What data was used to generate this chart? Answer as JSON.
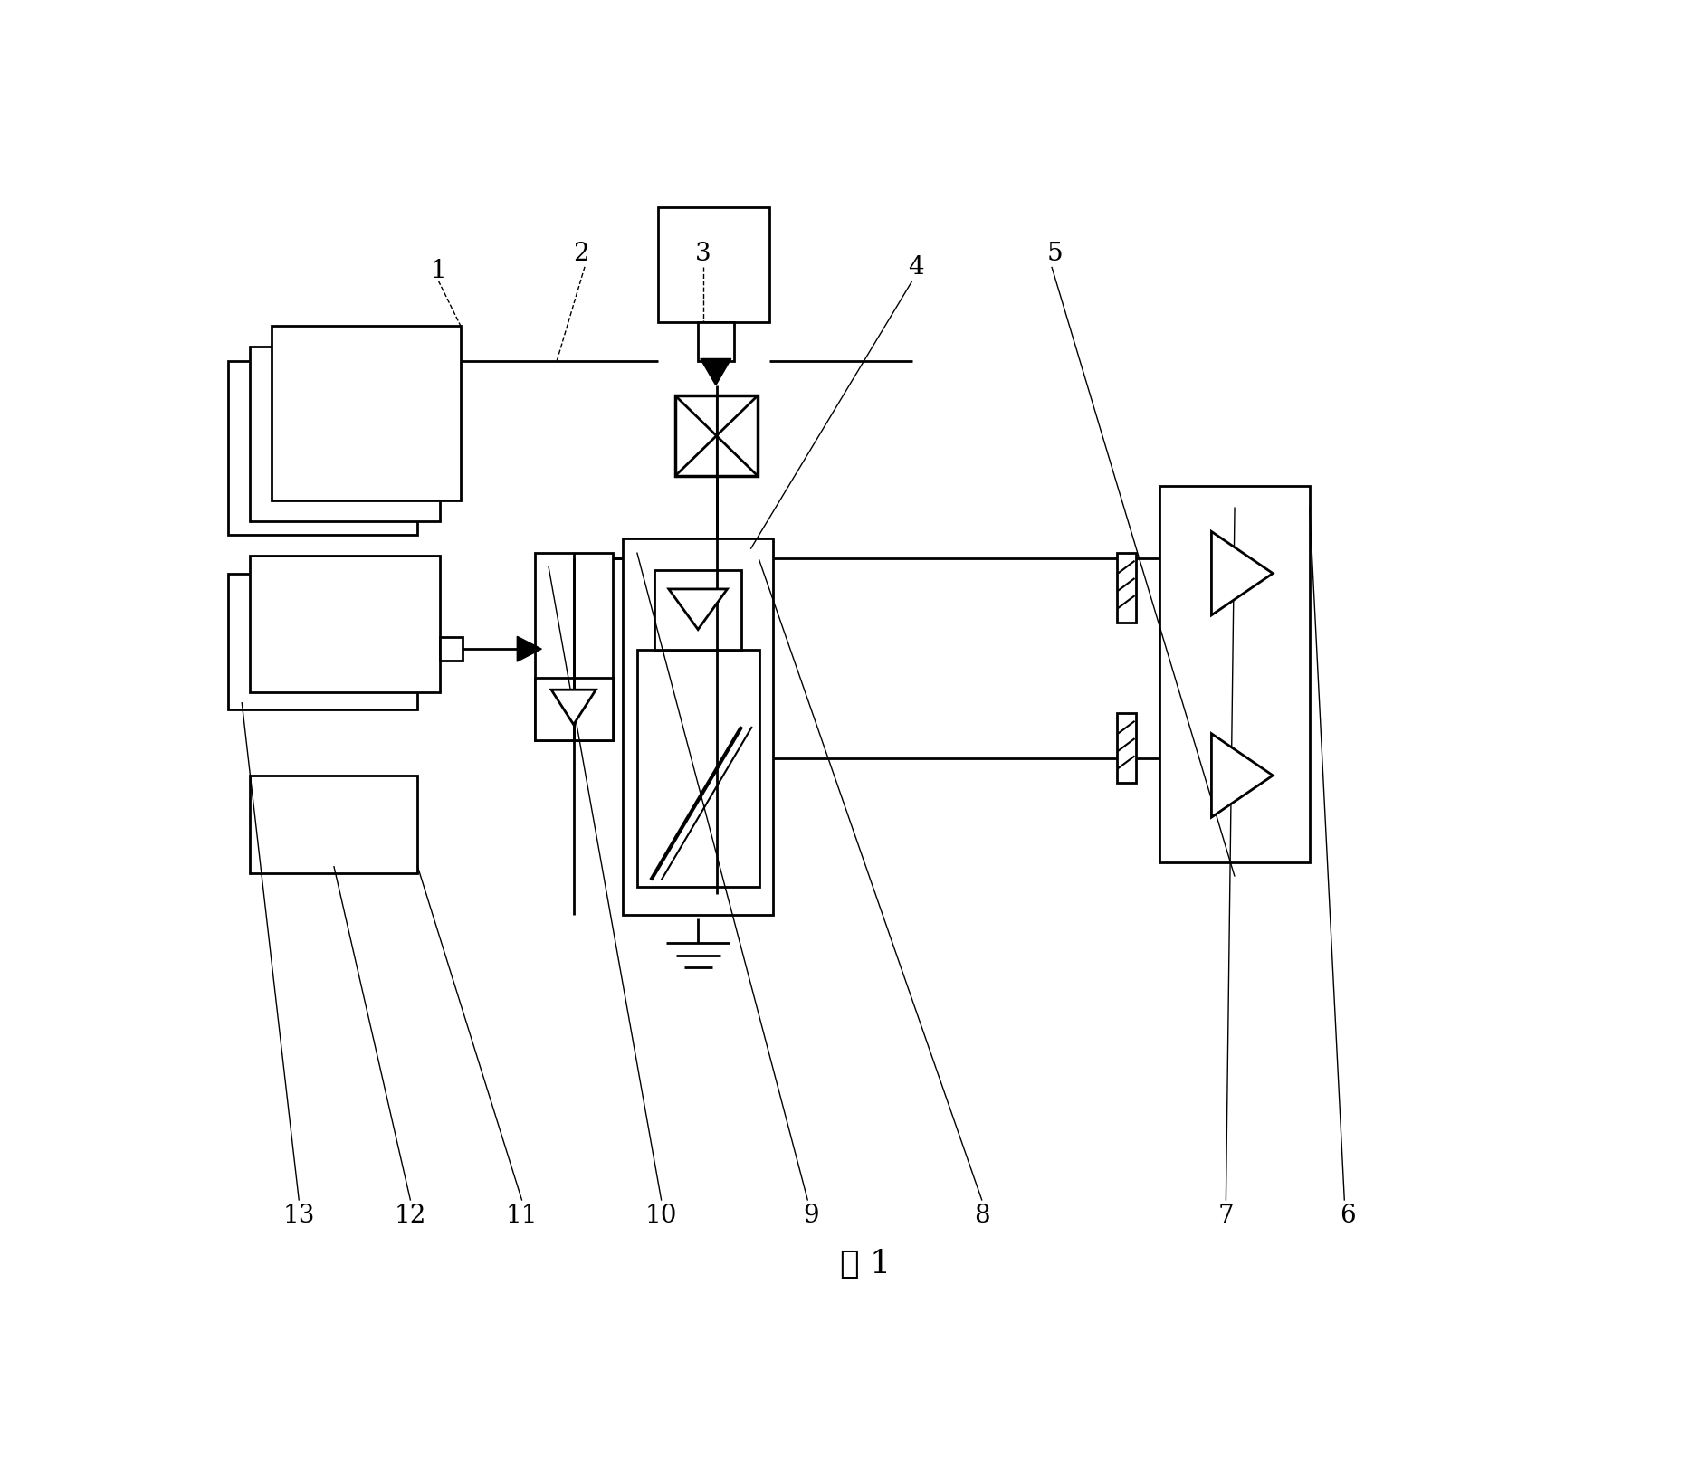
{
  "bg": "#ffffff",
  "lc": "#000000",
  "fw": 18.66,
  "fh": 16.31,
  "title": "图 1",
  "lw": 2.0,
  "lfs": 20
}
